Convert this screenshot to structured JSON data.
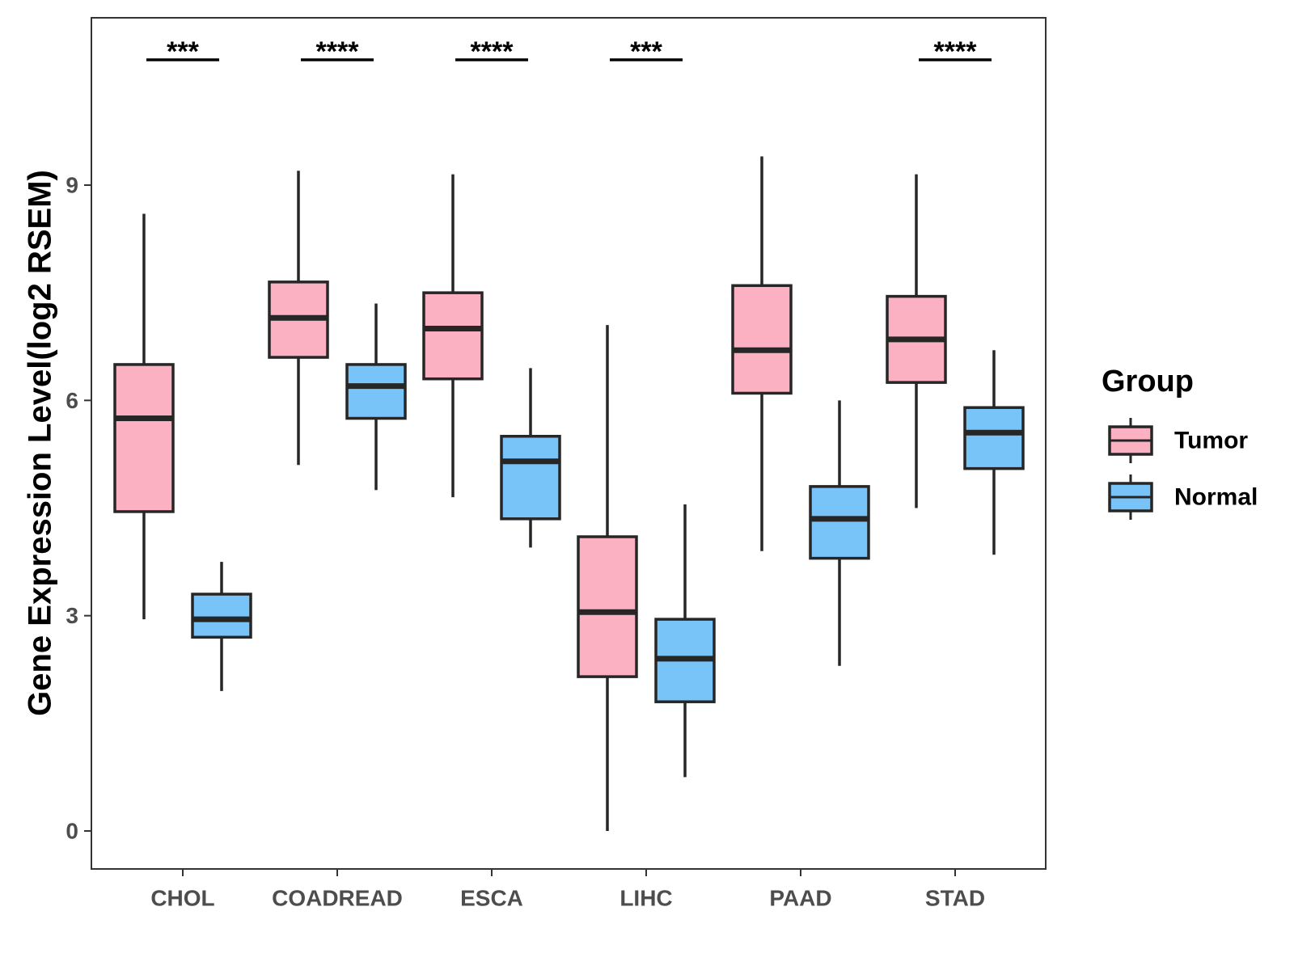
{
  "chart_data": {
    "type": "boxplot",
    "title": "",
    "xlabel": "",
    "ylabel": "Gene Expression Level(log2 RSEM)",
    "ylim": [
      -0.5,
      11.3
    ],
    "yticks": [
      0,
      3,
      6,
      9
    ],
    "ytick_labels": [
      "0",
      "3",
      "6",
      "9"
    ],
    "categories": [
      "CHOL",
      "COADREAD",
      "ESCA",
      "LIHC",
      "PAAD",
      "STAD"
    ],
    "legend": {
      "title": "Group",
      "position": "right",
      "entries": [
        "Tumor",
        "Normal"
      ]
    },
    "series": [
      {
        "name": "Tumor",
        "color": "#FBB1C2",
        "boxes": [
          {
            "min": 2.95,
            "q1": 4.45,
            "median": 5.75,
            "q3": 6.5,
            "max": 8.6
          },
          {
            "min": 5.1,
            "q1": 6.6,
            "median": 7.15,
            "q3": 7.65,
            "max": 9.2
          },
          {
            "min": 4.65,
            "q1": 6.3,
            "median": 7.0,
            "q3": 7.5,
            "max": 9.15
          },
          {
            "min": 0.0,
            "q1": 2.15,
            "median": 3.05,
            "q3": 4.1,
            "max": 7.05
          },
          {
            "min": 3.9,
            "q1": 6.1,
            "median": 6.7,
            "q3": 7.6,
            "max": 9.4
          },
          {
            "min": 4.5,
            "q1": 6.25,
            "median": 6.85,
            "q3": 7.45,
            "max": 9.15
          }
        ]
      },
      {
        "name": "Normal",
        "color": "#78C3F8",
        "boxes": [
          {
            "min": 1.95,
            "q1": 2.7,
            "median": 2.95,
            "q3": 3.3,
            "max": 3.75
          },
          {
            "min": 4.75,
            "q1": 5.75,
            "median": 6.2,
            "q3": 6.5,
            "max": 7.35
          },
          {
            "min": 3.95,
            "q1": 4.35,
            "median": 5.15,
            "q3": 5.5,
            "max": 6.45
          },
          {
            "min": 0.75,
            "q1": 1.8,
            "median": 2.4,
            "q3": 2.95,
            "max": 4.55
          },
          {
            "min": 2.3,
            "q1": 3.8,
            "median": 4.35,
            "q3": 4.8,
            "max": 6.0
          },
          {
            "min": 3.85,
            "q1": 5.05,
            "median": 5.55,
            "q3": 5.9,
            "max": 6.7
          }
        ]
      }
    ],
    "significance": [
      "***",
      "****",
      "****",
      "***",
      "",
      "****"
    ]
  }
}
